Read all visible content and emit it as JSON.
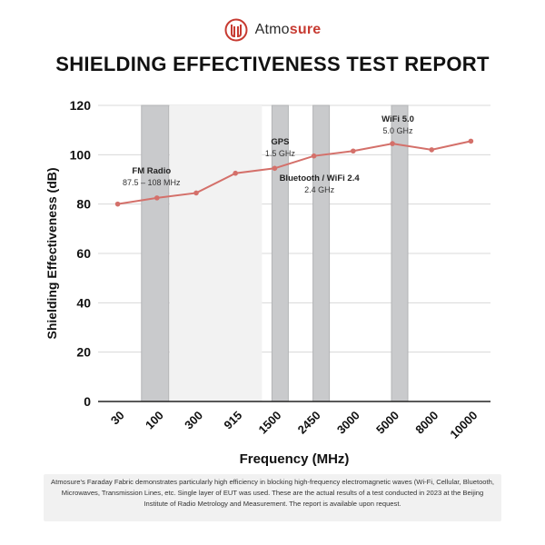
{
  "brand": {
    "name_prefix": "Atmo",
    "name_suffix": "sure",
    "accent_color": "#c73b32"
  },
  "header": {
    "title": "SHIELDING EFFECTIVENESS TEST REPORT"
  },
  "chart_data": {
    "type": "line",
    "categories": [
      "30",
      "100",
      "300",
      "915",
      "1500",
      "2450",
      "3000",
      "5000",
      "8000",
      "10000"
    ],
    "series": [
      {
        "values": [
          80,
          82.5,
          84.5,
          92.5,
          94.5,
          99.5,
          101.5,
          104.5,
          102,
          105.5
        ],
        "color": "#d4706a"
      }
    ],
    "xlabel": "Frequency (MHz)",
    "ylabel": "Shielding Effectiveness (dB)",
    "ylim": [
      0,
      120
    ],
    "yticks": [
      0,
      20,
      40,
      60,
      80,
      100,
      120
    ],
    "grid": true,
    "bands": [
      {
        "from": "100",
        "to": "100",
        "label": "FM Radio",
        "sublabel": "87.5 – 108 MHz"
      },
      {
        "from": "1500",
        "to": "1500",
        "label": "GPS",
        "sublabel": "1.5 GHz"
      },
      {
        "from": "2450",
        "to": "2450",
        "label": "Bluetooth / WiFi 2.4",
        "sublabel": "2.4 GHz"
      },
      {
        "from": "5000",
        "to": "5000",
        "label": "WiFi 5.0",
        "sublabel": "5.0 GHz"
      }
    ]
  },
  "footnote": "Atmosure's Faraday Fabric demonstrates particularly high efficiency in blocking high-frequency electromagnetic waves (Wi-Fi, Cellular, Bluetooth, Microwaves, Transmission Lines, etc. Single layer of EUT was used. These are the actual results of a test conducted in 2023 at the Beijing Institute of Radio Metrology and Measurement. The report is available upon request."
}
